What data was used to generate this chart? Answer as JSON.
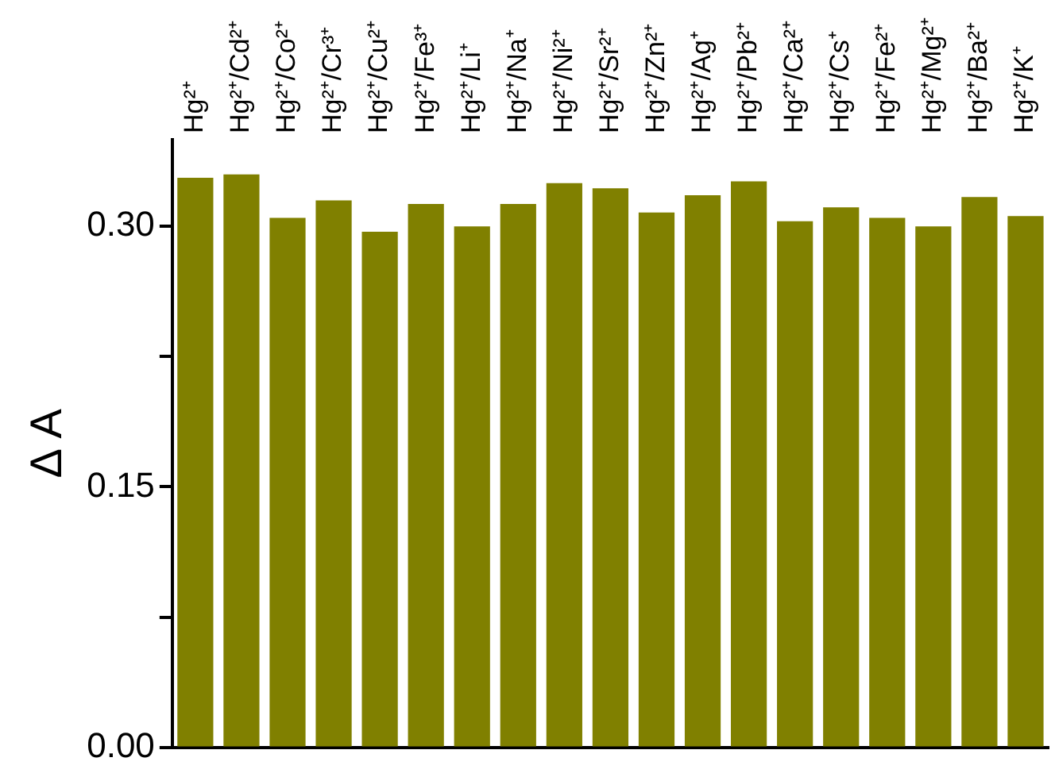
{
  "chart_data": {
    "type": "bar",
    "ylabel": "Δ A",
    "categories": [
      "Hg²⁺",
      "Hg²⁺/Cd²⁺",
      "Hg²⁺/Co²⁺",
      "Hg²⁺/Cr³⁺",
      "Hg²⁺/Cu²⁺",
      "Hg²⁺/Fe³⁺",
      "Hg²⁺/Li⁺",
      "Hg²⁺/Na⁺",
      "Hg²⁺/Ni²⁺",
      "Hg²⁺/Sr²⁺",
      "Hg²⁺/Zn²⁺",
      "Hg²⁺/Ag⁺",
      "Hg²⁺/Pb²⁺",
      "Hg²⁺/Ca²⁺",
      "Hg²⁺/Cs⁺",
      "Hg²⁺/Fe²⁺",
      "Hg²⁺/Mg²⁺",
      "Hg²⁺/Ba²⁺",
      "Hg²⁺/K⁺"
    ],
    "values": [
      0.328,
      0.33,
      0.305,
      0.315,
      0.297,
      0.313,
      0.3,
      0.313,
      0.325,
      0.322,
      0.308,
      0.318,
      0.326,
      0.303,
      0.311,
      0.305,
      0.3,
      0.317,
      0.306
    ],
    "color": "#808000",
    "ylim": [
      0,
      0.35
    ],
    "yticks": [
      {
        "value": 0,
        "label": "0.00"
      },
      {
        "value": 0.075,
        "label": null
      },
      {
        "value": 0.15,
        "label": "0.15"
      },
      {
        "value": 0.225,
        "label": null
      },
      {
        "value": 0.3,
        "label": "0.30"
      }
    ],
    "grid": false,
    "legend": false
  }
}
